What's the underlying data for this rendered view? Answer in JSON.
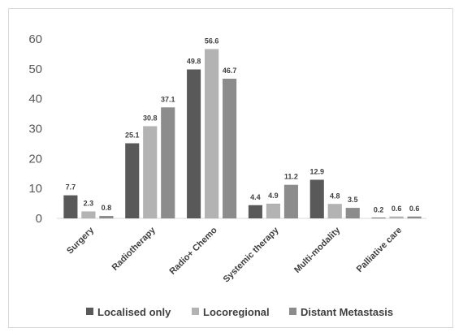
{
  "chart_data": {
    "type": "bar",
    "title": "",
    "xlabel": "",
    "ylabel": "",
    "ylim": [
      0,
      60
    ],
    "yticks": [
      0,
      10,
      20,
      30,
      40,
      50,
      60
    ],
    "grid": false,
    "legend_position": "bottom",
    "categories": [
      "Surgery",
      "Radiotherapy",
      "Radio+ Chemo",
      "Systemic therapy",
      "Multi-modality",
      "Palliative care"
    ],
    "series": [
      {
        "name": "Localised only",
        "color": "#595959",
        "values": [
          7.7,
          25.1,
          49.8,
          4.4,
          12.9,
          0.2
        ]
      },
      {
        "name": "Locoregional",
        "color": "#b3b3b3",
        "values": [
          2.3,
          30.8,
          56.6,
          4.9,
          4.8,
          0.6
        ]
      },
      {
        "name": "Distant Metastasis",
        "color": "#8c8c8c",
        "values": [
          0.8,
          37.1,
          46.7,
          11.2,
          3.5,
          0.6
        ]
      }
    ]
  }
}
